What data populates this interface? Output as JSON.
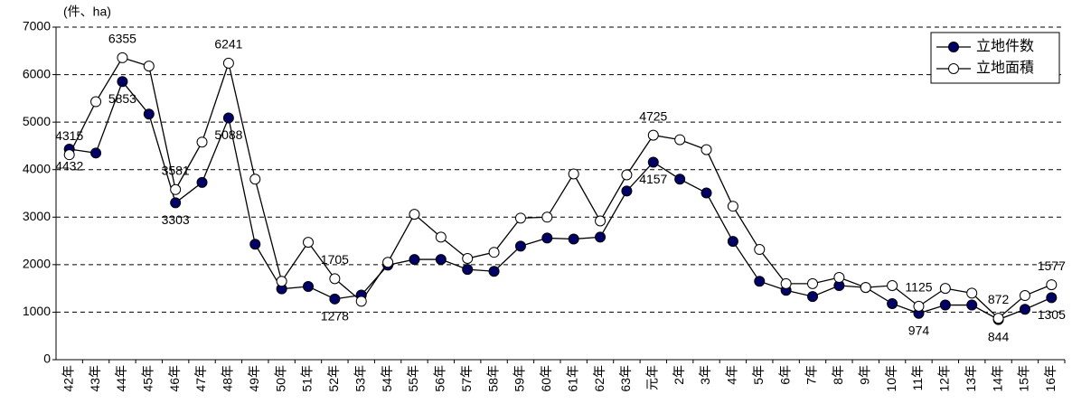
{
  "chart_data": {
    "type": "line",
    "y_axis_label": "(件、ha)",
    "categories": [
      "42年",
      "43年",
      "44年",
      "45年",
      "46年",
      "47年",
      "48年",
      "49年",
      "50年",
      "51年",
      "52年",
      "53年",
      "54年",
      "55年",
      "56年",
      "57年",
      "58年",
      "59年",
      "60年",
      "61年",
      "62年",
      "63年",
      "元年",
      "2年",
      "3年",
      "4年",
      "5年",
      "6年",
      "7年",
      "8年",
      "9年",
      "10年",
      "11年",
      "12年",
      "13年",
      "14年",
      "15年",
      "16年"
    ],
    "series": [
      {
        "name": "立地件数",
        "color": "#000066",
        "marker": "filled",
        "values": [
          4432,
          4350,
          5853,
          5170,
          3303,
          3730,
          5088,
          2430,
          1490,
          1540,
          1278,
          1360,
          1990,
          2110,
          2110,
          1900,
          1860,
          2390,
          2560,
          2540,
          2580,
          3550,
          4157,
          3800,
          3510,
          2490,
          1650,
          1460,
          1330,
          1560,
          1520,
          1180,
          974,
          1150,
          1150,
          844,
          1060,
          1305
        ],
        "value_labels": [
          "4432",
          null,
          "5853",
          null,
          "3303",
          null,
          "5088",
          null,
          null,
          null,
          "1278",
          null,
          null,
          null,
          null,
          null,
          null,
          null,
          null,
          null,
          null,
          null,
          "4157",
          null,
          null,
          null,
          null,
          null,
          null,
          null,
          null,
          null,
          "974",
          null,
          null,
          "844",
          null,
          "1305"
        ]
      },
      {
        "name": "立地面積",
        "color": "#ffffff",
        "marker": "open",
        "values": [
          4315,
          5430,
          6355,
          6180,
          3581,
          4580,
          6241,
          3800,
          1650,
          2470,
          1705,
          1230,
          2050,
          3060,
          2580,
          2130,
          2260,
          2980,
          3000,
          3910,
          2920,
          3890,
          4725,
          4630,
          4420,
          3230,
          2320,
          1600,
          1600,
          1730,
          1520,
          1560,
          1125,
          1500,
          1400,
          872,
          1350,
          1577
        ],
        "value_labels": [
          "4315",
          null,
          "6355",
          null,
          "3581",
          null,
          "6241",
          null,
          null,
          null,
          "1705",
          null,
          null,
          null,
          null,
          null,
          null,
          null,
          null,
          null,
          null,
          null,
          "4725",
          null,
          null,
          null,
          null,
          null,
          null,
          null,
          null,
          null,
          "1125",
          null,
          null,
          "872",
          null,
          "1577"
        ]
      }
    ],
    "ylim": [
      0,
      7000
    ],
    "yticks": [
      0,
      1000,
      2000,
      3000,
      4000,
      5000,
      6000,
      7000
    ],
    "grid": true,
    "legend": "top-right"
  }
}
